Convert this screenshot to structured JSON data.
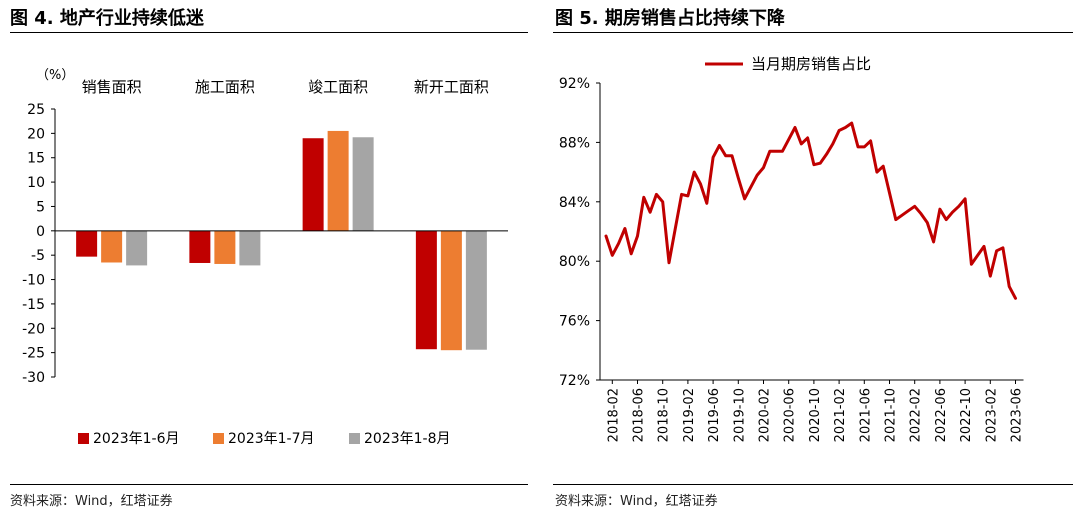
{
  "left_panel": {
    "title": "图 4. 地产行业持续低迷",
    "source": "资料来源：Wind，红塔证券"
  },
  "right_panel": {
    "title": "图 5. 期房销售占比持续下降",
    "source": "资料来源：Wind，红塔证券"
  },
  "chart_data": [
    {
      "type": "bar",
      "unit_label": "（%）",
      "categories": [
        "销售面积",
        "施工面积",
        "竣工面积",
        "新开工面积"
      ],
      "series": [
        {
          "name": "2023年1-6月",
          "color": "#c00000",
          "values": [
            -5.3,
            -6.6,
            19.0,
            -24.3
          ]
        },
        {
          "name": "2023年1-7月",
          "color": "#ed7d31",
          "values": [
            -6.5,
            -6.8,
            20.5,
            -24.5
          ]
        },
        {
          "name": "2023年1-8月",
          "color": "#a5a5a5",
          "values": [
            -7.1,
            -7.1,
            19.2,
            -24.4
          ]
        }
      ],
      "ylim": [
        -30,
        25
      ],
      "yticks": [
        25,
        20,
        15,
        10,
        5,
        0,
        -5,
        -10,
        -15,
        -20,
        -25,
        -30
      ],
      "legend": "bottom"
    },
    {
      "type": "line",
      "series": [
        {
          "name": "当月期房销售占比",
          "color": "#c00000",
          "values": [
            81.7,
            80.4,
            81.2,
            82.2,
            80.5,
            81.7,
            84.3,
            83.3,
            84.5,
            84.0,
            79.9,
            82.2,
            84.5,
            84.4,
            86.0,
            85.2,
            83.9,
            87.0,
            87.8,
            87.1,
            87.1,
            85.6,
            84.2,
            85.0,
            85.8,
            86.3,
            87.4,
            87.4,
            87.4,
            88.2,
            89.0,
            87.9,
            88.3,
            86.5,
            86.6,
            87.2,
            87.9,
            88.8,
            89.0,
            89.3,
            87.7,
            87.7,
            88.1,
            86.0,
            86.4,
            84.6,
            82.8,
            83.1,
            83.4,
            83.7,
            83.2,
            82.6,
            81.3,
            83.5,
            82.8,
            83.3,
            83.7,
            84.2,
            79.8,
            80.4,
            81.0,
            79.0,
            80.7,
            80.9,
            78.3,
            77.5
          ]
        }
      ],
      "x_start": "2018-01",
      "x_end": "2023-06",
      "xticks": [
        "2018-02",
        "2018-06",
        "2018-10",
        "2019-02",
        "2019-06",
        "2019-10",
        "2020-02",
        "2020-06",
        "2020-10",
        "2021-02",
        "2021-06",
        "2021-10",
        "2022-02",
        "2022-06",
        "2022-10",
        "2023-02",
        "2023-06"
      ],
      "ylim": [
        72,
        92
      ],
      "yticks": [
        "92%",
        "88%",
        "84%",
        "80%",
        "76%",
        "72%"
      ],
      "ytick_values": [
        92,
        88,
        84,
        80,
        76,
        72
      ],
      "legend": "top"
    }
  ]
}
